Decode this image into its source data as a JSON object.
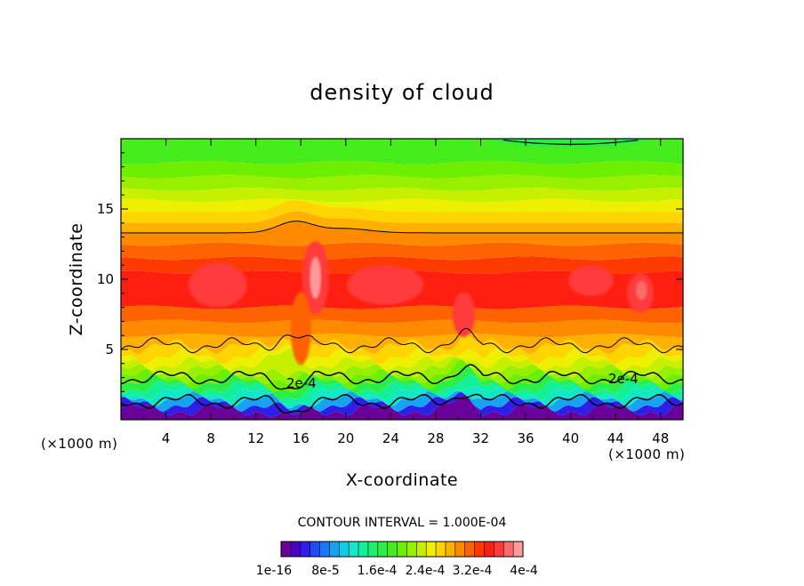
{
  "chart_data": {
    "type": "heatmap",
    "title": "density of cloud",
    "xlabel": "X-coordinate",
    "ylabel": "Z-coordinate",
    "x_unit": "(×1000 m)",
    "y_unit": "(×1000 m)",
    "xlim": [
      0,
      50
    ],
    "ylim": [
      0,
      20
    ],
    "x_ticks": [
      "4",
      "8",
      "12",
      "16",
      "20",
      "24",
      "28",
      "32",
      "36",
      "40",
      "44",
      "48"
    ],
    "y_ticks": [
      "5",
      "10",
      "15"
    ],
    "contour_interval": "CONTOUR INTERVAL = 1.000E-04",
    "contour_labels": [
      "2e-4",
      "2e-4"
    ],
    "colorbar": {
      "labels": [
        "1e-16",
        "8e-5",
        "1.6e-4",
        "2.4e-4",
        "3.2e-4",
        "4e-4"
      ],
      "colors": [
        "#6a0099",
        "#4b00c8",
        "#2f1fe6",
        "#1e4cf5",
        "#1c78f7",
        "#16a4f2",
        "#12cce6",
        "#10e8c8",
        "#14f09a",
        "#1ef06c",
        "#2cee44",
        "#46ec1c",
        "#6cf000",
        "#98f000",
        "#c6f000",
        "#eef000",
        "#ffd400",
        "#ffb000",
        "#ff8a00",
        "#ff6200",
        "#ff3a00",
        "#ff1e10",
        "#ff3a3a",
        "#ff6a6a",
        "#ff9a9a"
      ]
    },
    "bands": [
      {
        "z_bottom": 0.0,
        "z_top": 0.7,
        "color": "#6a0099"
      },
      {
        "z_bottom": 0.7,
        "z_top": 1.1,
        "color": "#2f1fe6"
      },
      {
        "z_bottom": 1.1,
        "z_top": 1.5,
        "color": "#16a4f2"
      },
      {
        "z_bottom": 1.5,
        "z_top": 1.9,
        "color": "#10e8c8"
      },
      {
        "z_bottom": 1.9,
        "z_top": 2.3,
        "color": "#14f09a"
      },
      {
        "z_bottom": 2.3,
        "z_top": 2.7,
        "color": "#2cee44"
      },
      {
        "z_bottom": 2.7,
        "z_top": 3.1,
        "color": "#6cf000"
      },
      {
        "z_bottom": 3.1,
        "z_top": 3.5,
        "color": "#98f000"
      },
      {
        "z_bottom": 3.5,
        "z_top": 4.0,
        "color": "#c6f000"
      },
      {
        "z_bottom": 4.0,
        "z_top": 4.5,
        "color": "#eef000"
      },
      {
        "z_bottom": 4.5,
        "z_top": 5.2,
        "color": "#ffd400"
      },
      {
        "z_bottom": 5.2,
        "z_top": 6.0,
        "color": "#ffb000"
      },
      {
        "z_bottom": 6.0,
        "z_top": 7.0,
        "color": "#ff8a00"
      },
      {
        "z_bottom": 7.0,
        "z_top": 8.0,
        "color": "#ff6200"
      },
      {
        "z_bottom": 8.0,
        "z_top": 10.5,
        "color": "#ff1e10"
      },
      {
        "z_bottom": 10.5,
        "z_top": 11.5,
        "color": "#ff3a00"
      },
      {
        "z_bottom": 11.5,
        "z_top": 12.5,
        "color": "#ff6200"
      },
      {
        "z_bottom": 12.5,
        "z_top": 13.3,
        "color": "#ff8a00"
      },
      {
        "z_bottom": 13.3,
        "z_top": 14.0,
        "color": "#ffb000"
      },
      {
        "z_bottom": 14.0,
        "z_top": 14.8,
        "color": "#ffd400"
      },
      {
        "z_bottom": 14.8,
        "z_top": 15.6,
        "color": "#eef000"
      },
      {
        "z_bottom": 15.6,
        "z_top": 16.4,
        "color": "#c6f000"
      },
      {
        "z_bottom": 16.4,
        "z_top": 17.3,
        "color": "#98f000"
      },
      {
        "z_bottom": 17.3,
        "z_top": 18.3,
        "color": "#6cf000"
      },
      {
        "z_bottom": 18.3,
        "z_top": 20.0,
        "color": "#46ec1c"
      }
    ],
    "contours": [
      {
        "z": 1.3
      },
      {
        "z": 3.0
      },
      {
        "z": 5.3
      },
      {
        "z": 13.3
      }
    ],
    "grid": false,
    "legend": "colorbar-bottom"
  }
}
